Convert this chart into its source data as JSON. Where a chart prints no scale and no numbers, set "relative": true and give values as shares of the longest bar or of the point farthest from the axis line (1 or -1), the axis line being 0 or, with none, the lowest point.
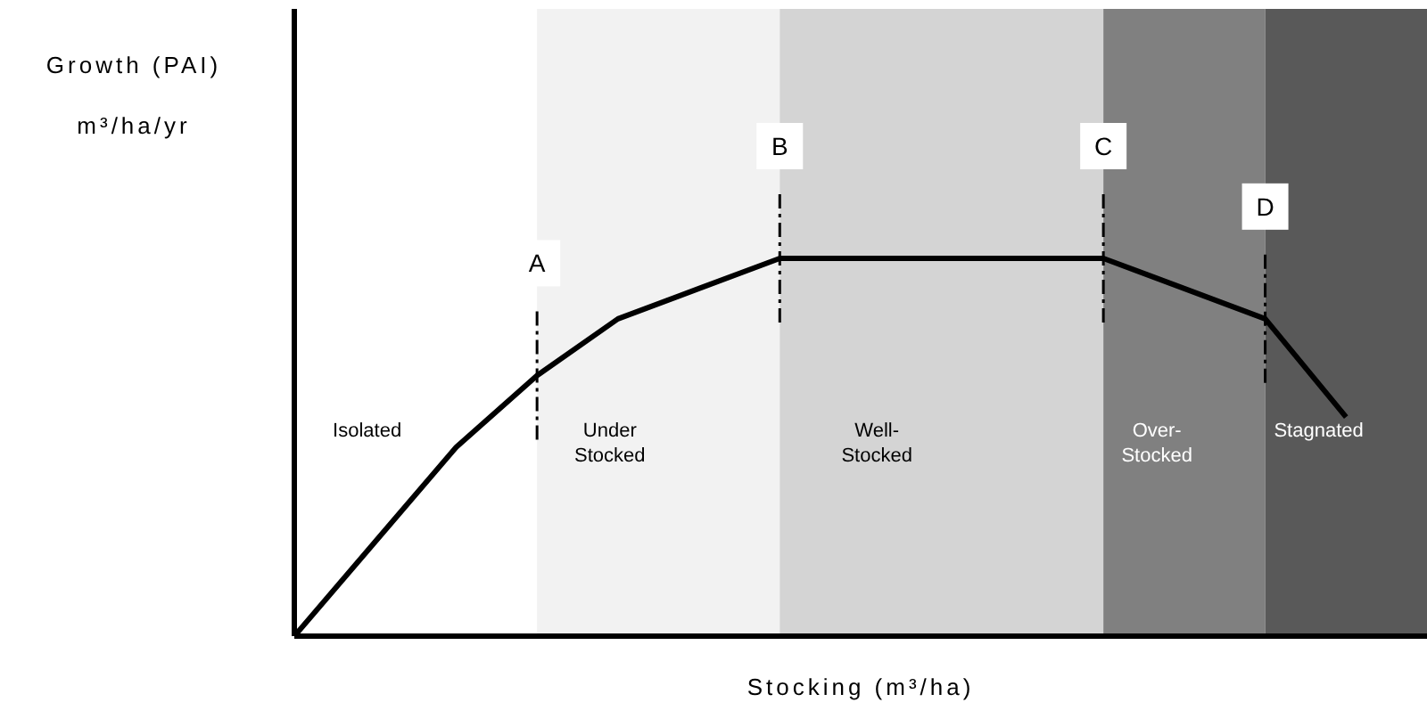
{
  "chart_data": {
    "type": "line",
    "relative": true,
    "ylabel": "Growth (PAI)\nm³/ha/yr",
    "xlabel": "Stocking (m³/ha)",
    "tick_labels": false,
    "marker": "none",
    "categories": [
      null,
      null,
      null,
      null,
      null,
      null,
      null,
      null,
      null,
      null,
      null,
      null,
      null,
      null,
      null
    ],
    "series": [
      {
        "color": "#000000",
        "values": [
          0,
          0.25,
          0.5,
          0.69,
          0.84,
          0.92,
          1,
          1,
          1,
          1,
          1,
          0.92,
          0.84,
          0.58,
          null
        ]
      }
    ],
    "annotations": [
      "A",
      "B",
      "C",
      "D",
      "Isolated",
      "Under\nStocked",
      "Well-\nStocked",
      "Over-\nStocked",
      "Stagnated"
    ]
  }
}
